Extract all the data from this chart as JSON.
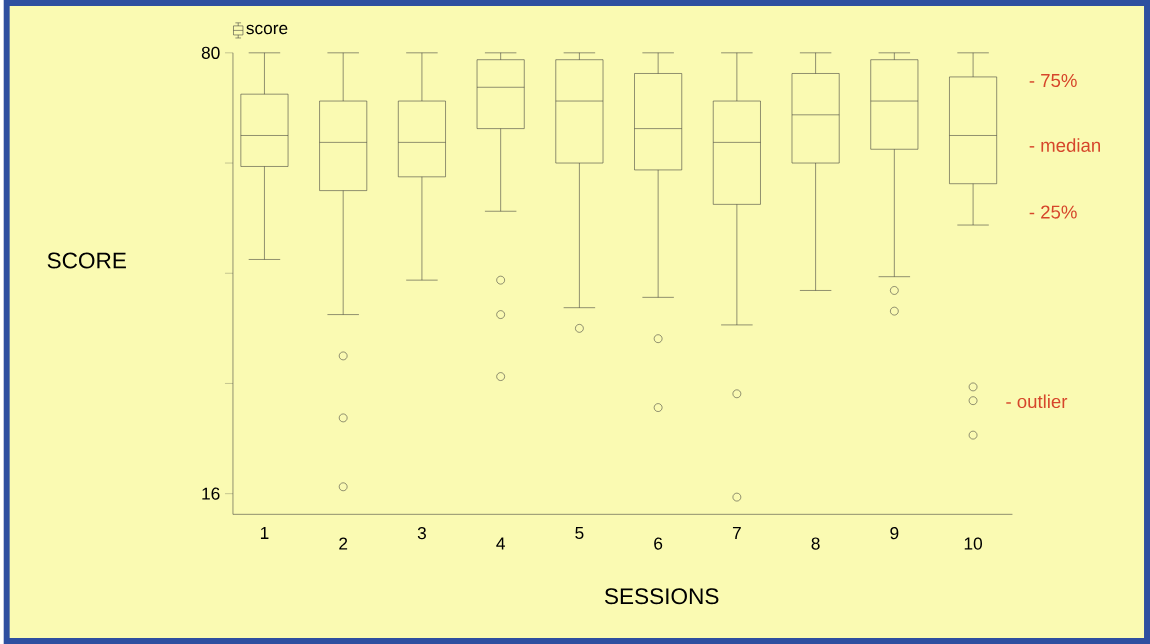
{
  "chart_data": {
    "type": "box",
    "xlabel": "SESSIONS",
    "ylabel": "SCORE",
    "categories": [
      "1",
      "2",
      "3",
      "4",
      "5",
      "6",
      "7",
      "8",
      "9",
      "10"
    ],
    "series": [
      {
        "name": "score",
        "color": "#333333",
        "boxes": [
          {
            "low": 50,
            "q1": 63.5,
            "median": 68,
            "q3": 74,
            "high": 80
          },
          {
            "low": 42,
            "q1": 60,
            "median": 67,
            "q3": 73,
            "high": 80,
            "outliers": [
              36,
              27,
              17
            ]
          },
          {
            "low": 47,
            "q1": 62,
            "median": 67,
            "q3": 73,
            "high": 80
          },
          {
            "low": 57,
            "q1": 69,
            "median": 75,
            "q3": 79,
            "high": 80,
            "outliers": [
              47,
              42,
              33
            ]
          },
          {
            "low": 43,
            "q1": 64,
            "median": 73,
            "q3": 79,
            "high": 80,
            "outliers": [
              40
            ]
          },
          {
            "low": 44.5,
            "q1": 63,
            "median": 69,
            "q3": 77,
            "high": 80,
            "outliers": [
              38.5,
              28.5
            ]
          },
          {
            "low": 40.5,
            "q1": 58,
            "median": 67,
            "q3": 73,
            "high": 80,
            "outliers": [
              30.5,
              15.5
            ]
          },
          {
            "low": 45.5,
            "q1": 64,
            "median": 71,
            "q3": 77,
            "high": 80
          },
          {
            "low": 47.5,
            "q1": 66,
            "median": 73,
            "q3": 79,
            "high": 80,
            "outliers": [
              45.5,
              42.5
            ]
          },
          {
            "low": 55,
            "q1": 61,
            "median": 68,
            "q3": 76.5,
            "high": 80,
            "outliers": [
              31.5,
              29.5,
              24.5
            ]
          }
        ]
      }
    ],
    "ylim": [
      13,
      80
    ],
    "yticks": [
      80,
      {
        "value": 64,
        "label": null
      },
      {
        "value": 48,
        "label": null
      },
      {
        "value": 32,
        "label": null
      },
      16
    ],
    "marker": "circle",
    "legend": "top left",
    "grid": false,
    "annotations": [
      "- 75%",
      "- median",
      "- 25%",
      "- outlier"
    ]
  }
}
